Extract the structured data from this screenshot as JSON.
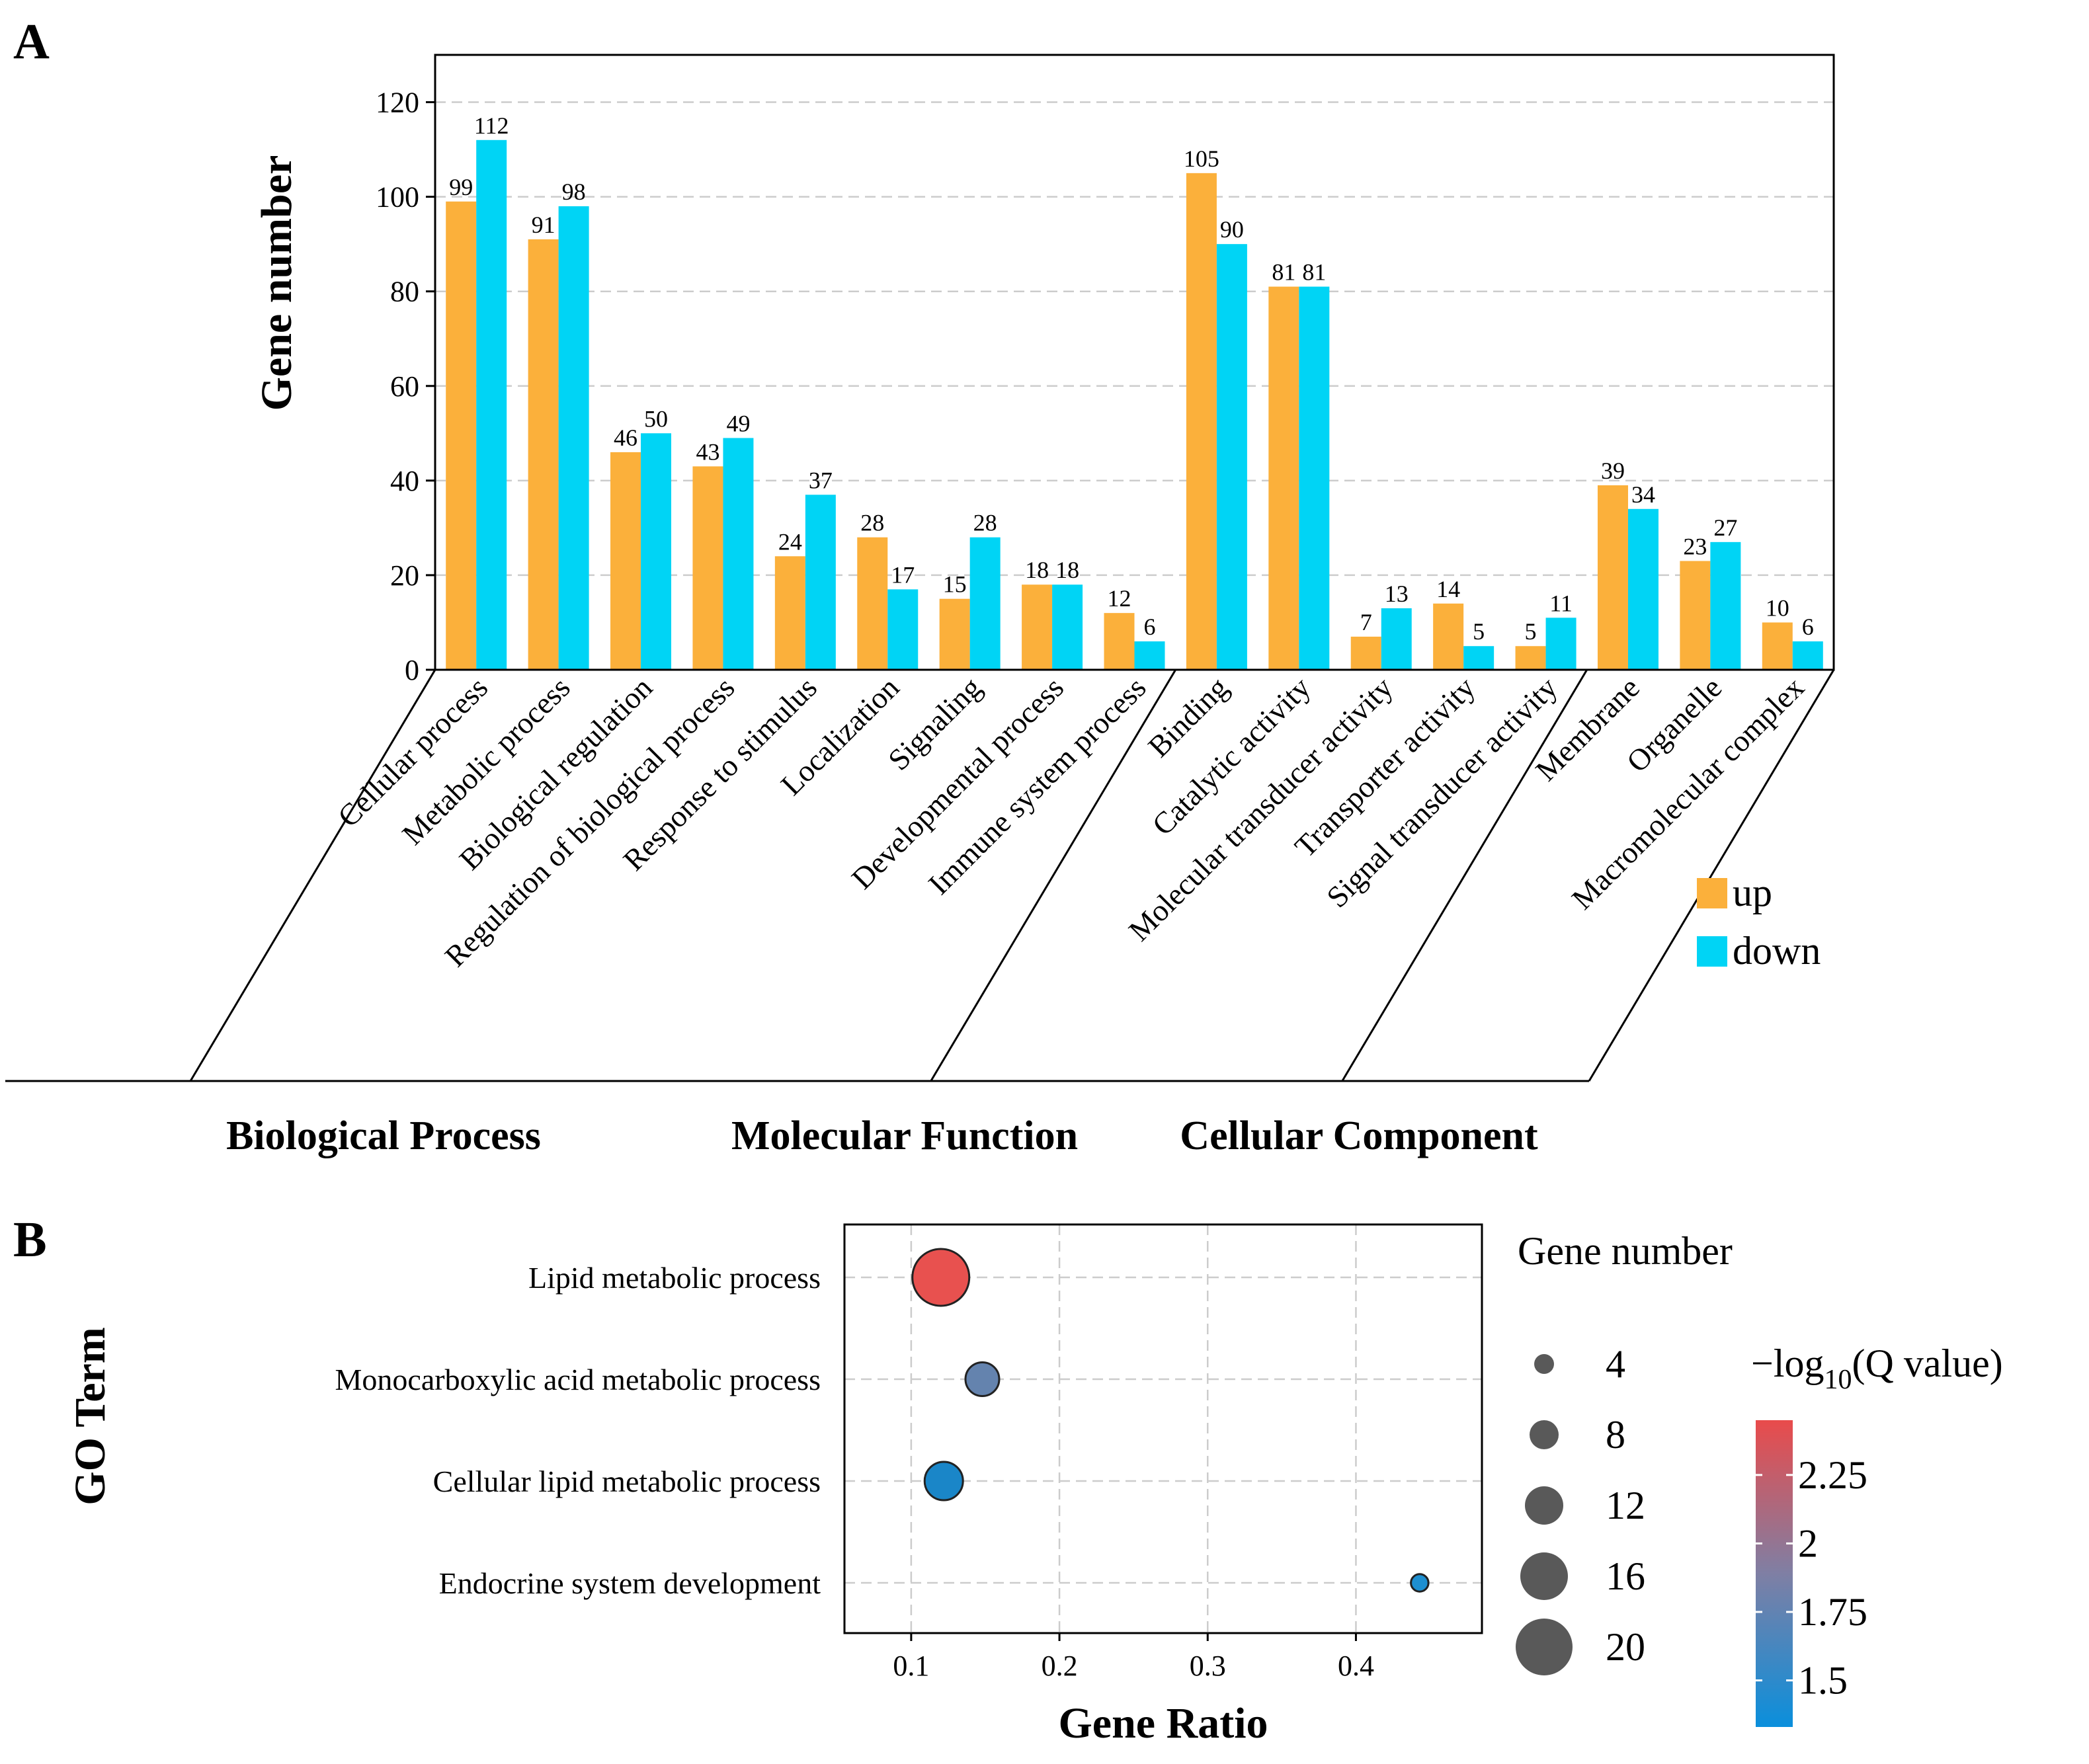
{
  "panels": {
    "a_label": "A",
    "b_label": "B"
  },
  "chart_data": [
    {
      "type": "bar",
      "ylabel": "Gene number",
      "ylim": [
        0,
        130
      ],
      "yticks": [
        "0",
        "20",
        "40",
        "60",
        "80",
        "100",
        "120"
      ],
      "grid": true,
      "categories": [
        "Cellular process",
        "Metabolic process",
        "Biological regulation",
        "Regulation of biological process",
        "Response to stimulus",
        "Localization",
        "Signaling",
        "Developmental process",
        "Immune system process",
        "Binding",
        "Catalytic activity",
        "Molecular transducer activity",
        "Transporter activity",
        "Signal transducer activity",
        "Membrane",
        "Organelle",
        "Macromolecular complex"
      ],
      "series": [
        {
          "name": "up",
          "color": "#FBB03B",
          "values": [
            99,
            91,
            46,
            43,
            24,
            28,
            15,
            18,
            12,
            105,
            81,
            7,
            14,
            5,
            39,
            23,
            10
          ]
        },
        {
          "name": "down",
          "color": "#00D4F5",
          "values": [
            112,
            98,
            50,
            49,
            37,
            17,
            28,
            18,
            6,
            90,
            81,
            13,
            5,
            11,
            34,
            27,
            6
          ]
        }
      ],
      "groups": [
        {
          "name": "Biological Process",
          "count": 9
        },
        {
          "name": "Molecular Function",
          "count": 5
        },
        {
          "name": "Cellular Component",
          "count": 3
        }
      ],
      "legend": {
        "position": "right",
        "entries": [
          "up",
          "down"
        ]
      }
    },
    {
      "type": "scatter",
      "xlabel": "Gene Ratio",
      "ylabel": "GO Term",
      "xlim": [
        0.055,
        0.485
      ],
      "xticks": [
        "0.1",
        "0.2",
        "0.3",
        "0.4"
      ],
      "grid": true,
      "points": [
        {
          "term": "Lipid metabolic process",
          "gene_ratio": 0.12,
          "gene_number": 20,
          "neg_log10_q": 2.4,
          "color": "#E8514F"
        },
        {
          "term": "Monocarboxylic acid metabolic process",
          "gene_ratio": 0.148,
          "gene_number": 10,
          "neg_log10_q": 1.72,
          "color": "#6483AE"
        },
        {
          "term": "Cellular lipid metabolic process",
          "gene_ratio": 0.122,
          "gene_number": 12,
          "neg_log10_q": 1.45,
          "color": "#1A86C8"
        },
        {
          "term": "Endocrine system development",
          "gene_ratio": 0.443,
          "gene_number": 3,
          "neg_log10_q": 1.4,
          "color": "#1E8FD0"
        }
      ],
      "size_legend": {
        "title": "Gene number",
        "values": [
          4,
          8,
          12,
          16,
          20
        ],
        "labels": [
          "4",
          "8",
          "12",
          "16",
          "20"
        ]
      },
      "color_legend": {
        "title_prefix": "−log",
        "title_sub": "10",
        "title_suffix": "(Q value)",
        "range": [
          1.33,
          2.45
        ],
        "ticks": [
          2.25,
          2,
          1.75,
          1.5
        ],
        "tick_labels": [
          "2.25",
          "2",
          "1.75",
          "1.5"
        ],
        "low_color": "#0A8FDC",
        "mid_color": "#7F7FA4",
        "high_color": "#E94B4B"
      }
    }
  ]
}
